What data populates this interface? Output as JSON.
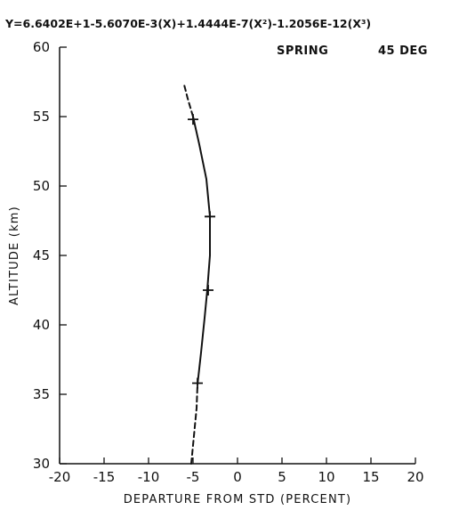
{
  "chart_data": {
    "type": "line",
    "title": "Y=6.6402E+1-5.6070E-3(X)+1.4444E-7(X²)-1.2056E-12(X³)",
    "annotations": [
      "SPRING",
      "45 DEG"
    ],
    "xlabel": "DEPARTURE FROM STD (PERCENT)",
    "ylabel": "ALTITUDE (km)",
    "xlim": [
      -20,
      20
    ],
    "ylim": [
      30,
      60
    ],
    "xticks": [
      "-20",
      "-15",
      "-10",
      "-5",
      "0",
      "5",
      "10",
      "15",
      "20"
    ],
    "yticks": [
      "30",
      "35",
      "40",
      "45",
      "50",
      "55",
      "60"
    ],
    "grid": false,
    "series": [
      {
        "style": "dashed",
        "points": [
          [
            -5.2,
            30.0
          ],
          [
            -4.9,
            32.0
          ],
          [
            -4.6,
            34.0
          ],
          [
            -4.5,
            35.7
          ]
        ]
      },
      {
        "style": "solid",
        "points": [
          [
            -4.5,
            35.7
          ],
          [
            -4.1,
            38.0
          ],
          [
            -3.7,
            40.5
          ],
          [
            -3.4,
            42.5
          ],
          [
            -3.1,
            45.0
          ],
          [
            -3.1,
            47.8
          ],
          [
            -3.5,
            50.5
          ],
          [
            -4.3,
            53.0
          ],
          [
            -5.0,
            55.0
          ]
        ]
      },
      {
        "style": "dashed",
        "points": [
          [
            -5.0,
            55.0
          ],
          [
            -5.6,
            56.3
          ],
          [
            -6.0,
            57.3
          ]
        ]
      }
    ],
    "markers": [
      [
        -4.5,
        35.8
      ],
      [
        -3.3,
        42.5
      ],
      [
        -3.1,
        47.8
      ],
      [
        -5.0,
        54.8
      ]
    ]
  }
}
